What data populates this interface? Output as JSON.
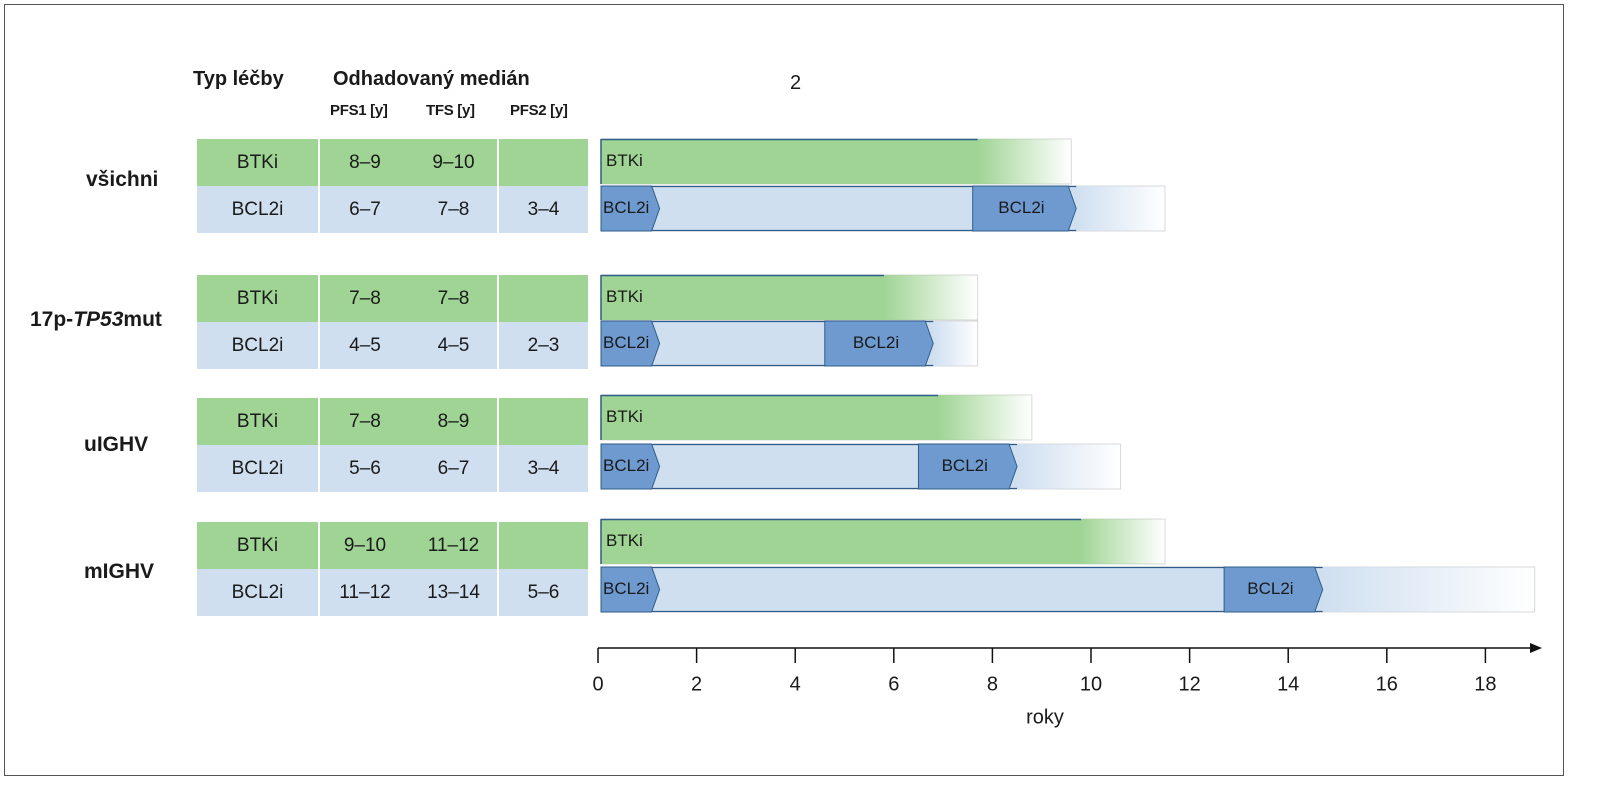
{
  "header": {
    "col_type": "Typ léčby",
    "col_median": "Odhadovaný medián",
    "sub": [
      "PFS1 [y]",
      "TFS [y]",
      "PFS2 [y]"
    ],
    "top_number": "2"
  },
  "groups": [
    {
      "label": "všichni",
      "label_pre": "všichni",
      "label_italic": "",
      "label_post": "",
      "rows": [
        {
          "type": "BTKi",
          "pfs1": "8–9",
          "tfs": "9–10",
          "pfs2": ""
        },
        {
          "type": "BCL2i",
          "pfs1": "6–7",
          "tfs": "7–8",
          "pfs2": "3–4"
        }
      ]
    },
    {
      "label": "17p-TP53mut",
      "label_pre": "17p-",
      "label_italic": "TP53",
      "label_post": "mut",
      "rows": [
        {
          "type": "BTKi",
          "pfs1": "7–8",
          "tfs": "7–8",
          "pfs2": ""
        },
        {
          "type": "BCL2i",
          "pfs1": "4–5",
          "tfs": "4–5",
          "pfs2": "2–3"
        }
      ]
    },
    {
      "label": "uIGHV",
      "label_pre": "uIGHV",
      "label_italic": "",
      "label_post": "",
      "rows": [
        {
          "type": "BTKi",
          "pfs1": "7–8",
          "tfs": "8–9",
          "pfs2": ""
        },
        {
          "type": "BCL2i",
          "pfs1": "5–6",
          "tfs": "6–7",
          "pfs2": "3–4"
        }
      ]
    },
    {
      "label": "mIGHV",
      "label_pre": "mIGHV",
      "label_italic": "",
      "label_post": "",
      "rows": [
        {
          "type": "BTKi",
          "pfs1": "9–10",
          "tfs": "11–12",
          "pfs2": ""
        },
        {
          "type": "BCL2i",
          "pfs1": "11–12",
          "tfs": "13–14",
          "pfs2": "5–6"
        }
      ]
    }
  ],
  "chart_data": {
    "type": "bar",
    "xlabel": "roky",
    "xlim": [
      0,
      19
    ],
    "xticks": [
      0,
      2,
      4,
      6,
      8,
      10,
      12,
      14,
      16,
      18
    ],
    "bar_label_btk": "BTKi",
    "bar_label_bcl": "BCL2i",
    "colors": {
      "btk": "#9fd494",
      "btk_border": "#2e5d8a",
      "bcl_light": "#cfdff0",
      "bcl_arrow": "#6e9ad0",
      "bcl_arrow_border": "#2e5d8a",
      "axis": "#111111"
    },
    "bars": [
      {
        "group": "všichni",
        "btk": {
          "solid_end": 7.7,
          "fade_end": 9.6
        },
        "bcl": {
          "first_end": 1.25,
          "second_start": 7.6,
          "second_end": 9.7,
          "fade_end": 11.5
        }
      },
      {
        "group": "17p-TP53mut",
        "btk": {
          "solid_end": 5.8,
          "fade_end": 7.7
        },
        "bcl": {
          "first_end": 1.25,
          "second_start": 4.6,
          "second_end": 6.8,
          "fade_end": 7.7
        }
      },
      {
        "group": "uIGHV",
        "btk": {
          "solid_end": 6.9,
          "fade_end": 8.8
        },
        "bcl": {
          "first_end": 1.25,
          "second_start": 6.5,
          "second_end": 8.5,
          "fade_end": 10.6
        }
      },
      {
        "group": "mIGHV",
        "btk": {
          "solid_end": 9.8,
          "fade_end": 11.5
        },
        "bcl": {
          "first_end": 1.25,
          "second_start": 12.7,
          "second_end": 14.7,
          "fade_end": 19.0
        }
      }
    ]
  }
}
